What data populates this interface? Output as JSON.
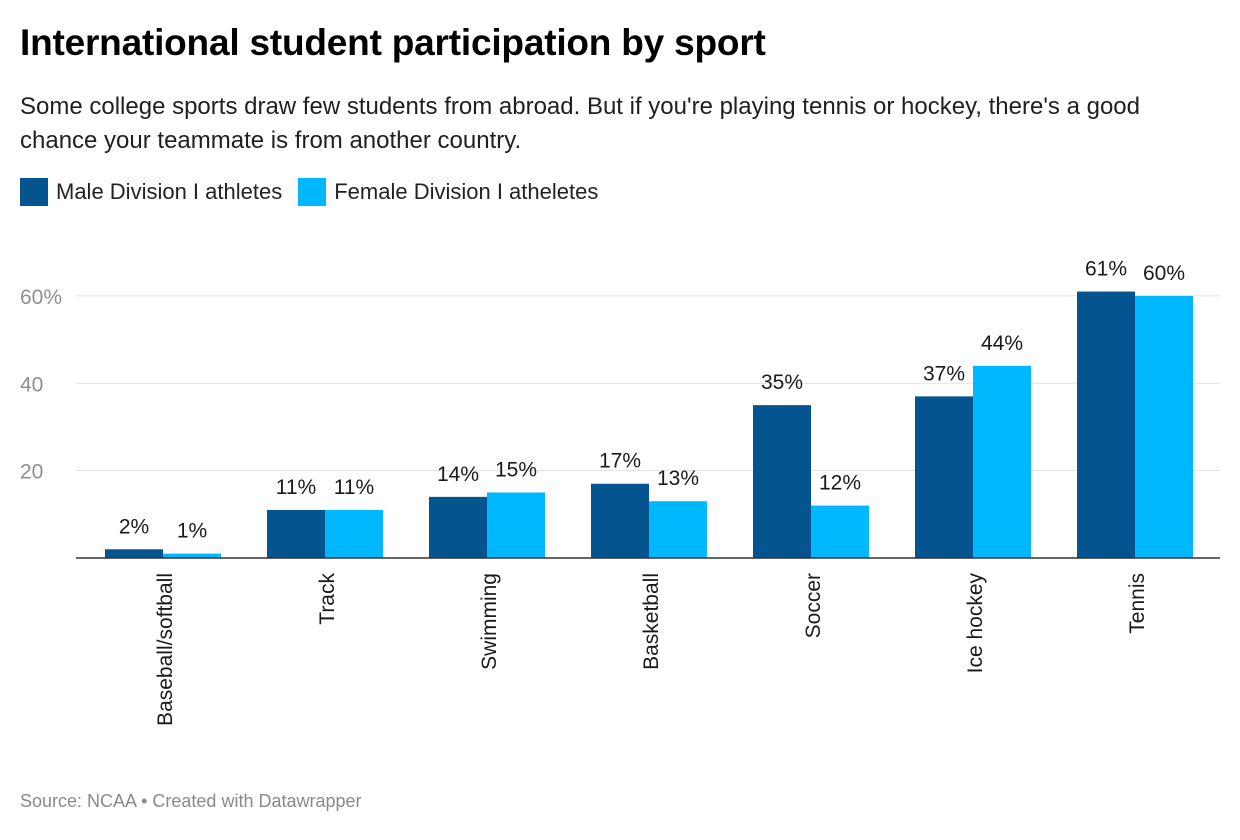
{
  "header": {
    "title": "International student participation by sport",
    "subtitle": "Some college sports draw few students from abroad. But if you're playing tennis or hockey, there's a good chance your teammate is from another country."
  },
  "footer": {
    "source": "Source: NCAA",
    "separator": "•",
    "credit": "Created with Datawrapper"
  },
  "chart_data": {
    "type": "bar",
    "categories": [
      "Baseball/softball",
      "Track",
      "Swimming",
      "Basketball",
      "Soccer",
      "Ice hockey",
      "Tennis"
    ],
    "series": [
      {
        "name": "Male Division I athletes",
        "color": "#04548f",
        "values": [
          2,
          11,
          14,
          17,
          35,
          37,
          61
        ],
        "labels": [
          "2%",
          "11%",
          "14%",
          "17%",
          "35%",
          "37%",
          "61%"
        ]
      },
      {
        "name": "Female Division I atheletes",
        "color": "#00b8ff",
        "values": [
          1,
          11,
          15,
          13,
          12,
          44,
          60
        ],
        "labels": [
          "1%",
          "11%",
          "15%",
          "13%",
          "12%",
          "44%",
          "60%"
        ]
      }
    ],
    "yticks": [
      {
        "value": 20,
        "label": "20"
      },
      {
        "value": 40,
        "label": "40"
      },
      {
        "value": 60,
        "label": "60%"
      }
    ],
    "ylim": [
      0,
      60
    ],
    "grid": true,
    "legend_position": "top-left"
  }
}
